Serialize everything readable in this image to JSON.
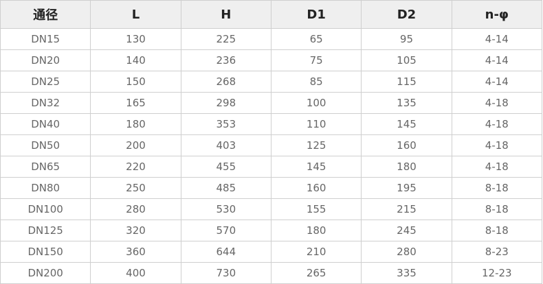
{
  "table": {
    "headers": [
      "通径",
      "L",
      "H",
      "D1",
      "D2",
      "n-φ"
    ],
    "rows": [
      [
        "DN15",
        "130",
        "225",
        "65",
        "95",
        "4-14"
      ],
      [
        "DN20",
        "140",
        "236",
        "75",
        "105",
        "4-14"
      ],
      [
        "DN25",
        "150",
        "268",
        "85",
        "115",
        "4-14"
      ],
      [
        "DN32",
        "165",
        "298",
        "100",
        "135",
        "4-18"
      ],
      [
        "DN40",
        "180",
        "353",
        "110",
        "145",
        "4-18"
      ],
      [
        "DN50",
        "200",
        "403",
        "125",
        "160",
        "4-18"
      ],
      [
        "DN65",
        "220",
        "455",
        "145",
        "180",
        "4-18"
      ],
      [
        "DN80",
        "250",
        "485",
        "160",
        "195",
        "8-18"
      ],
      [
        "DN100",
        "280",
        "530",
        "155",
        "215",
        "8-18"
      ],
      [
        "DN125",
        "320",
        "570",
        "180",
        "245",
        "8-18"
      ],
      [
        "DN150",
        "360",
        "644",
        "210",
        "280",
        "8-23"
      ],
      [
        "DN200",
        "400",
        "730",
        "265",
        "335",
        "12-23"
      ]
    ]
  }
}
